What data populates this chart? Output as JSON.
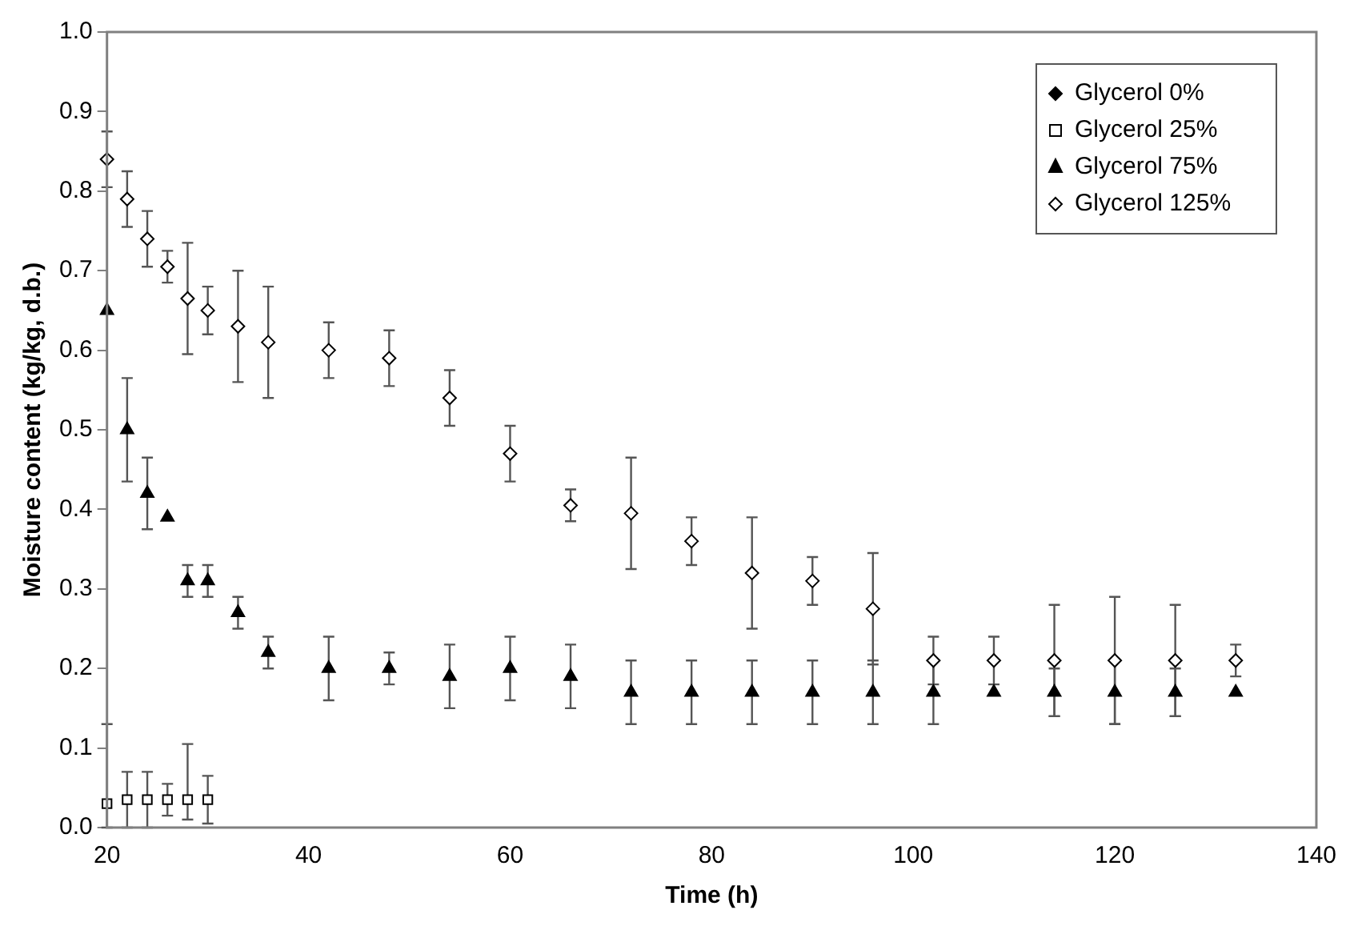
{
  "chart_data": {
    "type": "scatter",
    "xlabel": "Time (h)",
    "ylabel": "Moisture content (kg/kg, d.b.)",
    "xlim": [
      20,
      140
    ],
    "xticks": [
      20,
      40,
      60,
      80,
      100,
      120,
      140
    ],
    "ylim": [
      0,
      1
    ],
    "yticks": [
      {
        "value": 0,
        "label": "0.0"
      },
      {
        "value": 0.1,
        "label": "0.1"
      },
      {
        "value": 0.2,
        "label": "0.2"
      },
      {
        "value": 0.3,
        "label": "0.3"
      },
      {
        "value": 0.4,
        "label": "0.4"
      },
      {
        "value": 0.5,
        "label": "0.5"
      },
      {
        "value": 0.6,
        "label": "0.6"
      },
      {
        "value": 0.7,
        "label": "0.7"
      },
      {
        "value": 0.8,
        "label": "0.8"
      },
      {
        "value": 0.9,
        "label": "0.9"
      },
      {
        "value": 1,
        "label": "1.0"
      }
    ],
    "grid": false,
    "legend": "top right",
    "series": [
      {
        "name": "Glycerol 0%",
        "color": "#000000",
        "marker": "diamond"
      },
      {
        "name": "Glycerol 25%",
        "color": "#000000",
        "marker": "square",
        "x": [
          20,
          22,
          24,
          26,
          28,
          30
        ],
        "values": [
          0.03,
          0.035,
          0.035,
          0.035,
          0.035,
          0.035
        ],
        "errors": [
          [
            0,
            0.13
          ],
          0.035,
          0.035,
          0.02,
          [
            0.01,
            0.105
          ],
          0.03
        ]
      },
      {
        "name": "Glycerol 75%",
        "color": "#000000",
        "marker": "triangle",
        "x": [
          20,
          22,
          24,
          26,
          28,
          30,
          33,
          36,
          42,
          48,
          54,
          60,
          66,
          72,
          78,
          84,
          90,
          96,
          102,
          108,
          114,
          120,
          126,
          132
        ],
        "values": [
          0.65,
          0.5,
          0.42,
          0.39,
          0.31,
          0.31,
          0.27,
          0.22,
          0.2,
          0.2,
          0.19,
          0.2,
          0.19,
          0.17,
          0.17,
          0.17,
          0.17,
          0.17,
          0.17,
          0.17,
          0.17,
          0.17,
          0.17,
          0.17
        ],
        "errors": [
          null,
          0.065,
          0.045,
          null,
          0.02,
          0.02,
          0.02,
          0.02,
          0.04,
          0.02,
          0.04,
          0.04,
          0.04,
          0.04,
          0.04,
          0.04,
          0.04,
          0.04,
          0.04,
          null,
          0.03,
          0.04,
          0.03,
          null
        ]
      },
      {
        "name": "Glycerol 125%",
        "color": "#000000",
        "marker": "diamond",
        "x": [
          20,
          22,
          24,
          26,
          28,
          30,
          33,
          36,
          42,
          48,
          54,
          60,
          66,
          72,
          78,
          84,
          90,
          96,
          102,
          108,
          114,
          120,
          126,
          132
        ],
        "values": [
          0.84,
          0.79,
          0.74,
          0.705,
          0.665,
          0.65,
          0.63,
          0.61,
          0.6,
          0.59,
          0.54,
          0.47,
          0.405,
          0.395,
          0.36,
          0.32,
          0.31,
          0.275,
          0.21,
          0.21,
          0.21,
          0.21,
          0.21,
          0.21
        ],
        "errors": [
          0.035,
          0.035,
          0.035,
          0.02,
          0.07,
          0.03,
          0.07,
          0.07,
          0.035,
          0.035,
          0.035,
          0.035,
          0.02,
          0.07,
          0.03,
          0.07,
          0.03,
          0.07,
          0.03,
          0.03,
          0.07,
          0.08,
          0.07,
          0.02
        ]
      }
    ]
  }
}
